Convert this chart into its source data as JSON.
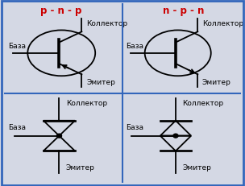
{
  "bg_color": "#d4d8e4",
  "border_color": "#3366bb",
  "divider_color": "#3366bb",
  "text_color": "#000000",
  "title_pnp": "p - n - p",
  "title_npn": "n - p - n",
  "title_color": "#cc0000",
  "label_collector": "Коллектор",
  "label_base": "База",
  "label_emitter": "Эмитер",
  "fontsize_title": 8.5,
  "fontsize_label": 6.5,
  "lw": 1.3
}
